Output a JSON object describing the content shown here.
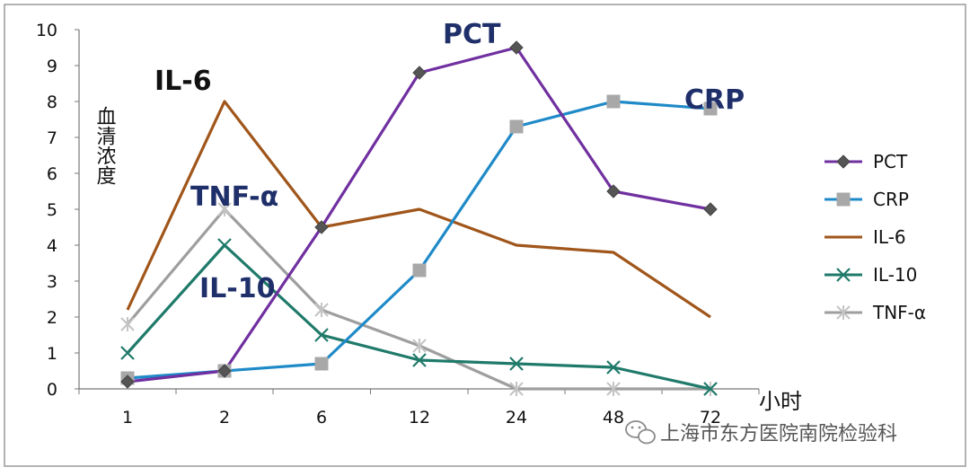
{
  "chart_data": {
    "type": "line",
    "categories": [
      "1",
      "2",
      "6",
      "12",
      "24",
      "48",
      "72"
    ],
    "ylim": [
      0,
      10
    ],
    "yticks": [
      "0",
      "1",
      "2",
      "3",
      "4",
      "5",
      "6",
      "7",
      "8",
      "9",
      "10"
    ],
    "ylabel": "血清浓度",
    "xlabel": "小时",
    "grid": false,
    "legend_position": "right",
    "series": [
      {
        "name": "PCT",
        "color": "#7030A0",
        "marker": "diamond",
        "values": [
          0.2,
          0.5,
          4.5,
          8.8,
          9.5,
          5.5,
          5.0
        ]
      },
      {
        "name": "CRP",
        "color": "#1F8AC8",
        "marker": "square",
        "values": [
          0.3,
          0.5,
          0.7,
          3.3,
          7.3,
          8.0,
          7.8
        ]
      },
      {
        "name": "IL-6",
        "color": "#A0561B",
        "marker": "none",
        "values": [
          2.2,
          8.0,
          4.5,
          5.0,
          4.0,
          3.8,
          2.0
        ]
      },
      {
        "name": "IL-10",
        "color": "#1F7A6A",
        "marker": "x",
        "values": [
          1.0,
          4.0,
          1.5,
          0.8,
          0.7,
          0.6,
          0.0
        ]
      },
      {
        "name": "TNF-α",
        "color": "#9E9E9E",
        "marker": "star",
        "values": [
          1.8,
          5.0,
          2.2,
          1.2,
          0.0,
          0.0,
          0.0
        ]
      }
    ],
    "annotations": [
      {
        "text": "PCT",
        "color": "#1F2F6A"
      },
      {
        "text": "CRP",
        "color": "#1F2F6A"
      },
      {
        "text": "IL-6",
        "color": "#111111"
      },
      {
        "text": "TNF-α",
        "color": "#1F2F6A"
      },
      {
        "text": "IL-10",
        "color": "#1F2F6A"
      }
    ]
  },
  "watermark": {
    "text": "上海市东方医院南院检验科",
    "icon": "wechat-icon"
  }
}
